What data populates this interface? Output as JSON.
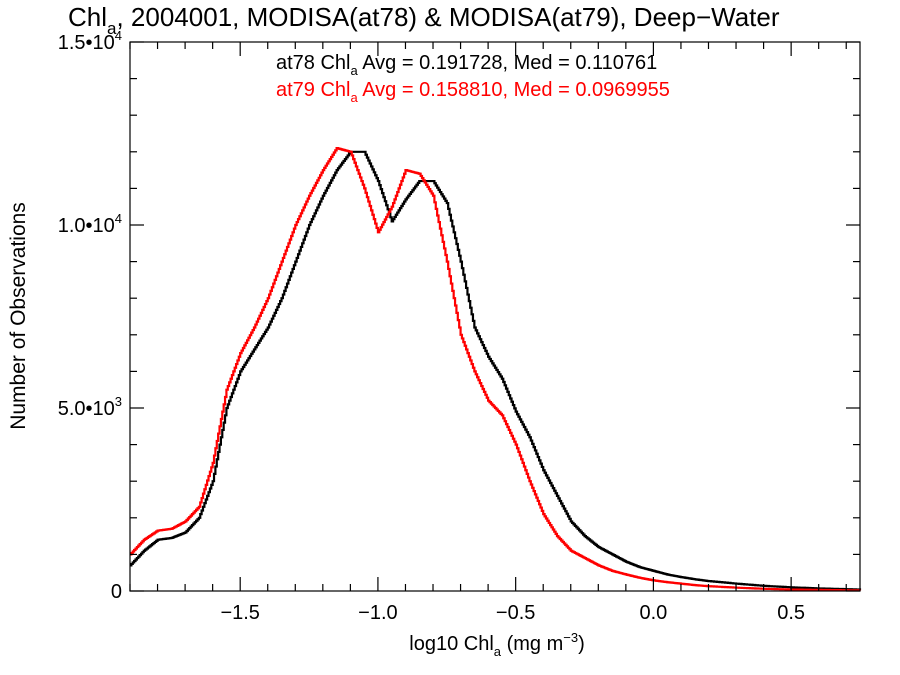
{
  "chart_data": {
    "type": "line",
    "title": {
      "main": "Chl",
      "main_sub": "a",
      "rest": ", 2004001, MODISA(at78) & MODISA(at79), Deep−Water"
    },
    "xlabel": {
      "pre": "log10 Chl",
      "sub": "a",
      "mid": " (mg m",
      "sup": "−3",
      "post": ")"
    },
    "ylabel": "Number of Observations",
    "xlim": [
      -1.9,
      0.75
    ],
    "ylim": [
      0,
      15000
    ],
    "x_ticks": [
      {
        "value": -1.5,
        "label": "−1.5"
      },
      {
        "value": -1.0,
        "label": "−1.0"
      },
      {
        "value": -0.5,
        "label": "−0.5"
      },
      {
        "value": 0.0,
        "label": "0.0"
      },
      {
        "value": 0.5,
        "label": "0.5"
      }
    ],
    "y_ticks": [
      {
        "value": 0,
        "mant": "0",
        "exp": ""
      },
      {
        "value": 5000,
        "mant": "5.0•10",
        "exp": "3"
      },
      {
        "value": 10000,
        "mant": "1.0•10",
        "exp": "4"
      },
      {
        "value": 15000,
        "mant": "1.5•10",
        "exp": "4"
      }
    ],
    "grid": false,
    "legend": {
      "position": "top-center",
      "entries": [
        {
          "pre": "at78 Chl",
          "sub": "a",
          "post": " Avg = 0.191728, Med = 0.110761",
          "color": "#000000"
        },
        {
          "pre": "at79 Chl",
          "sub": "a",
          "post": " Avg = 0.158810, Med = 0.0969955",
          "color": "#ff0000"
        }
      ]
    },
    "series": [
      {
        "color": "#000000",
        "x": [
          -1.9,
          -1.85,
          -1.8,
          -1.75,
          -1.7,
          -1.65,
          -1.6,
          -1.55,
          -1.5,
          -1.45,
          -1.4,
          -1.35,
          -1.3,
          -1.25,
          -1.2,
          -1.15,
          -1.1,
          -1.05,
          -1.0,
          -0.95,
          -0.9,
          -0.85,
          -0.8,
          -0.75,
          -0.7,
          -0.65,
          -0.6,
          -0.55,
          -0.5,
          -0.45,
          -0.4,
          -0.35,
          -0.3,
          -0.25,
          -0.2,
          -0.15,
          -0.1,
          -0.05,
          0.0,
          0.05,
          0.1,
          0.15,
          0.2,
          0.3,
          0.4,
          0.5,
          0.6,
          0.7,
          0.75
        ],
        "y": [
          700,
          1100,
          1400,
          1450,
          1600,
          2000,
          3000,
          5000,
          6000,
          6600,
          7200,
          8000,
          9000,
          10000,
          10800,
          11500,
          12000,
          12000,
          11200,
          10100,
          10700,
          11200,
          11200,
          10600,
          9000,
          7200,
          6400,
          5800,
          4900,
          4200,
          3300,
          2600,
          1900,
          1500,
          1200,
          1000,
          800,
          650,
          550,
          450,
          380,
          320,
          270,
          200,
          140,
          100,
          70,
          50,
          40
        ]
      },
      {
        "color": "#ff0000",
        "x": [
          -1.9,
          -1.85,
          -1.8,
          -1.75,
          -1.7,
          -1.65,
          -1.6,
          -1.55,
          -1.5,
          -1.45,
          -1.4,
          -1.35,
          -1.3,
          -1.25,
          -1.2,
          -1.15,
          -1.1,
          -1.05,
          -1.0,
          -0.95,
          -0.9,
          -0.85,
          -0.8,
          -0.75,
          -0.7,
          -0.65,
          -0.6,
          -0.55,
          -0.5,
          -0.45,
          -0.4,
          -0.35,
          -0.3,
          -0.25,
          -0.2,
          -0.15,
          -0.1,
          -0.05,
          0.0,
          0.05,
          0.1,
          0.15,
          0.2,
          0.3,
          0.4,
          0.5,
          0.6,
          0.7,
          0.75
        ],
        "y": [
          1000,
          1400,
          1650,
          1700,
          1900,
          2300,
          3500,
          5500,
          6500,
          7200,
          8000,
          9000,
          10000,
          10800,
          11500,
          12100,
          12000,
          11000,
          9800,
          10500,
          11500,
          11400,
          10800,
          9000,
          7000,
          6000,
          5200,
          4800,
          4000,
          3000,
          2100,
          1500,
          1100,
          900,
          700,
          550,
          450,
          360,
          290,
          240,
          200,
          160,
          130,
          90,
          60,
          40,
          30,
          20,
          15
        ]
      }
    ]
  }
}
